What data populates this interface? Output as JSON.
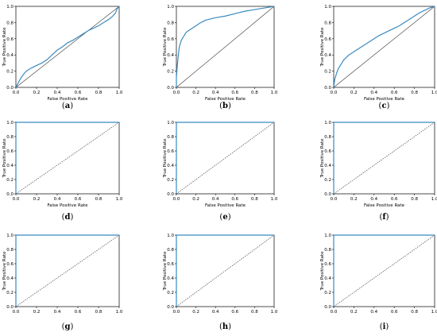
{
  "colors": {
    "roc_curve": "#3a8bc0",
    "diagonal": "#333333",
    "axes": "#000000",
    "background": "#ffffff"
  },
  "chart_data": [
    {
      "id": "a",
      "caption": "(a)",
      "type": "line",
      "xlabel": "False Positive Rate",
      "ylabel": "True Positive Rate",
      "xlim": [
        0.0,
        1.0
      ],
      "ylim": [
        0.0,
        1.0
      ],
      "xticks": [
        "0.0",
        "0.2",
        "0.4",
        "0.6",
        "0.8",
        "1.0"
      ],
      "yticks": [
        "0.0",
        "0.2",
        "0.4",
        "0.6",
        "0.8",
        "1.0"
      ],
      "diagonal_style": "solid",
      "grid": false,
      "series": [
        {
          "x": [
            0.0,
            0.02,
            0.05,
            0.08,
            0.1,
            0.15,
            0.2,
            0.25,
            0.3,
            0.35,
            0.4,
            0.45,
            0.5,
            0.55,
            0.6,
            0.65,
            0.7,
            0.75,
            0.8,
            0.85,
            0.9,
            0.93,
            0.96,
            0.98,
            1.0
          ],
          "y": [
            0.0,
            0.05,
            0.12,
            0.17,
            0.2,
            0.24,
            0.27,
            0.3,
            0.34,
            0.4,
            0.46,
            0.5,
            0.55,
            0.58,
            0.62,
            0.66,
            0.7,
            0.73,
            0.76,
            0.8,
            0.84,
            0.87,
            0.91,
            0.97,
            1.0
          ]
        }
      ]
    },
    {
      "id": "b",
      "caption": "(b)",
      "type": "line",
      "xlabel": "False Positive Rate",
      "ylabel": "True Positive Rate",
      "xlim": [
        0.0,
        1.0
      ],
      "ylim": [
        0.0,
        1.0
      ],
      "xticks": [
        "0.0",
        "0.2",
        "0.4",
        "0.6",
        "0.8",
        "1.0"
      ],
      "yticks": [
        "0.0",
        "0.2",
        "0.4",
        "0.6",
        "0.8",
        "1.0"
      ],
      "diagonal_style": "solid",
      "grid": false,
      "series": [
        {
          "x": [
            0.0,
            0.0,
            0.01,
            0.02,
            0.03,
            0.05,
            0.08,
            0.1,
            0.15,
            0.2,
            0.25,
            0.3,
            0.4,
            0.5,
            0.6,
            0.7,
            0.8,
            0.9,
            1.0
          ],
          "y": [
            0.0,
            0.12,
            0.28,
            0.4,
            0.5,
            0.58,
            0.64,
            0.68,
            0.72,
            0.76,
            0.8,
            0.83,
            0.86,
            0.88,
            0.91,
            0.94,
            0.96,
            0.98,
            1.0
          ]
        }
      ]
    },
    {
      "id": "c",
      "caption": "(c)",
      "type": "line",
      "xlabel": "False Positive Rate",
      "ylabel": "True Positive Rate",
      "xlim": [
        0.0,
        1.0
      ],
      "ylim": [
        0.0,
        1.0
      ],
      "xticks": [
        "0.0",
        "0.2",
        "0.4",
        "0.6",
        "0.8",
        "1.0"
      ],
      "yticks": [
        "0.0",
        "0.2",
        "0.4",
        "0.6",
        "0.8",
        "1.0"
      ],
      "diagonal_style": "solid",
      "grid": false,
      "series": [
        {
          "x": [
            0.0,
            0.01,
            0.03,
            0.05,
            0.08,
            0.1,
            0.15,
            0.2,
            0.25,
            0.3,
            0.35,
            0.4,
            0.45,
            0.5,
            0.55,
            0.6,
            0.65,
            0.7,
            0.75,
            0.8,
            0.85,
            0.9,
            0.95,
            1.0
          ],
          "y": [
            0.0,
            0.1,
            0.18,
            0.24,
            0.3,
            0.34,
            0.4,
            0.44,
            0.48,
            0.52,
            0.56,
            0.6,
            0.64,
            0.67,
            0.7,
            0.73,
            0.76,
            0.8,
            0.84,
            0.88,
            0.92,
            0.95,
            0.98,
            1.0
          ]
        }
      ]
    },
    {
      "id": "d",
      "caption": "(d)",
      "type": "line",
      "xlabel": "False Positive Rate",
      "ylabel": "True Positive Rate",
      "xlim": [
        0.0,
        1.0
      ],
      "ylim": [
        0.0,
        1.0
      ],
      "xticks": [
        "0.0",
        "0.2",
        "0.4",
        "0.6",
        "0.8",
        "1.0"
      ],
      "yticks": [
        "0.0",
        "0.2",
        "0.4",
        "0.6",
        "0.8",
        "1.0"
      ],
      "diagonal_style": "dashed",
      "grid": false,
      "series": [
        {
          "x": [
            0.0,
            0.0,
            1.0
          ],
          "y": [
            0.0,
            1.0,
            1.0
          ]
        }
      ]
    },
    {
      "id": "e",
      "caption": "(e)",
      "type": "line",
      "xlabel": "False Positive Rate",
      "ylabel": "True Positive Rate",
      "xlim": [
        0.0,
        1.0
      ],
      "ylim": [
        0.0,
        1.0
      ],
      "xticks": [
        "0.0",
        "0.2",
        "0.4",
        "0.6",
        "0.8",
        "1.0"
      ],
      "yticks": [
        "0.0",
        "0.2",
        "0.4",
        "0.6",
        "0.8",
        "1.0"
      ],
      "diagonal_style": "dashed",
      "grid": false,
      "series": [
        {
          "x": [
            0.0,
            0.0,
            1.0
          ],
          "y": [
            0.0,
            1.0,
            1.0
          ]
        }
      ]
    },
    {
      "id": "f",
      "caption": "(f)",
      "type": "line",
      "xlabel": "False Positive Rate",
      "ylabel": "True Positive Rate",
      "xlim": [
        0.0,
        1.0
      ],
      "ylim": [
        0.0,
        1.0
      ],
      "xticks": [
        "0.0",
        "0.2",
        "0.4",
        "0.6",
        "0.8",
        "1.0"
      ],
      "yticks": [
        "0.0",
        "0.2",
        "0.4",
        "0.6",
        "0.8",
        "1.0"
      ],
      "diagonal_style": "dashed",
      "grid": false,
      "series": [
        {
          "x": [
            0.0,
            0.0,
            1.0
          ],
          "y": [
            0.0,
            1.0,
            1.0
          ]
        }
      ]
    },
    {
      "id": "g",
      "caption": "(g)",
      "type": "line",
      "xlabel": "",
      "ylabel": "True Positive Rate",
      "xlim": [
        0.0,
        1.0
      ],
      "ylim": [
        0.0,
        1.0
      ],
      "xticks": [
        "0.0",
        "0.2",
        "0.4",
        "0.6",
        "0.8",
        "1.0"
      ],
      "yticks": [
        "0.0",
        "0.2",
        "0.4",
        "0.6",
        "0.8",
        "1.0"
      ],
      "diagonal_style": "dashed",
      "grid": false,
      "series": [
        {
          "x": [
            0.0,
            0.0,
            1.0
          ],
          "y": [
            0.0,
            1.0,
            1.0
          ]
        }
      ]
    },
    {
      "id": "h",
      "caption": "(h)",
      "type": "line",
      "xlabel": "",
      "ylabel": "True Positive Rate",
      "xlim": [
        0.0,
        1.0
      ],
      "ylim": [
        0.0,
        1.0
      ],
      "xticks": [
        "0.0",
        "0.2",
        "0.4",
        "0.6",
        "0.8",
        "1.0"
      ],
      "yticks": [
        "0.0",
        "0.2",
        "0.4",
        "0.6",
        "0.8",
        "1.0"
      ],
      "diagonal_style": "dashed",
      "grid": false,
      "series": [
        {
          "x": [
            0.0,
            0.0,
            1.0
          ],
          "y": [
            0.0,
            1.0,
            1.0
          ]
        }
      ]
    },
    {
      "id": "i",
      "caption": "(i)",
      "type": "line",
      "xlabel": "",
      "ylabel": "True Positive Rate",
      "xlim": [
        0.0,
        1.0
      ],
      "ylim": [
        0.0,
        1.0
      ],
      "xticks": [
        "0.0",
        "0.2",
        "0.4",
        "0.6",
        "0.8",
        "1.0"
      ],
      "yticks": [
        "0.0",
        "0.2",
        "0.4",
        "0.6",
        "0.8",
        "1.0"
      ],
      "diagonal_style": "dashed",
      "grid": false,
      "series": [
        {
          "x": [
            0.0,
            0.0,
            1.0
          ],
          "y": [
            0.0,
            1.0,
            1.0
          ]
        }
      ]
    }
  ]
}
